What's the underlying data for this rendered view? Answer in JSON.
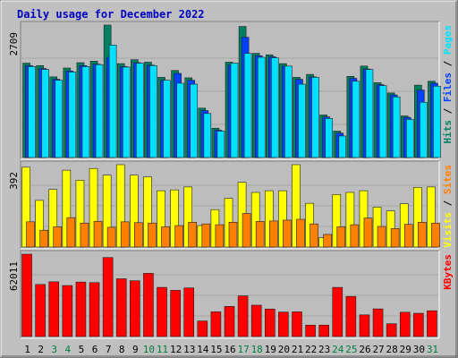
{
  "colors": {
    "background": "#C0C0C0",
    "panel": "#BDBDBD",
    "title": "#0000C0",
    "hits": "#008060",
    "files": "#0040FF",
    "pages": "#00E0FF",
    "visits": "#FFFF00",
    "sites": "#FF8000",
    "kbytes": "#FF0000",
    "weekend_label": "#008040",
    "weekday_label": "#000000"
  },
  "chart_data": {
    "type": "bar",
    "title": "Daily usage for December 2022",
    "categories": [
      "1",
      "2",
      "3",
      "4",
      "5",
      "6",
      "7",
      "8",
      "9",
      "10",
      "11",
      "12",
      "13",
      "14",
      "15",
      "16",
      "17",
      "18",
      "19",
      "20",
      "21",
      "22",
      "23",
      "24",
      "25",
      "26",
      "27",
      "28",
      "29",
      "30",
      "31"
    ],
    "weekend_days": [
      3,
      4,
      10,
      11,
      17,
      18,
      24,
      25,
      31
    ],
    "panels": [
      {
        "name": "top",
        "max_label": "2709",
        "right_labels": [
          {
            "text": "Hits",
            "color": "#008060"
          },
          {
            "text": " / ",
            "color": "#000000"
          },
          {
            "text": "Files",
            "color": "#0040FF"
          },
          {
            "text": " / ",
            "color": "#000000"
          },
          {
            "text": "Pages",
            "color": "#00E0FF"
          }
        ],
        "series": [
          {
            "name": "Hits",
            "color": "#008060",
            "values": [
              1930,
              1880,
              1650,
              1830,
              1940,
              1970,
              2709,
              1920,
              2000,
              1950,
              1640,
              1780,
              1630,
              1010,
              600,
              1950,
              2680,
              2130,
              2100,
              1920,
              1640,
              1700,
              870,
              540,
              1660,
              1870,
              1530,
              1320,
              850,
              1480,
              1560
            ]
          },
          {
            "name": "Files",
            "color": "#0040FF",
            "values": [
              1880,
              1820,
              1600,
              1770,
              1880,
              1910,
              2050,
              1860,
              1940,
              1890,
              1580,
              1720,
              1580,
              960,
              560,
              1890,
              2460,
              2080,
              2060,
              1870,
              1600,
              1650,
              830,
              500,
              1620,
              1810,
              1490,
              1280,
              820,
              1380,
              1520
            ]
          },
          {
            "name": "Pages",
            "color": "#00E0FF",
            "values": [
              1860,
              1800,
              1580,
              1750,
              1860,
              1900,
              2300,
              1850,
              1930,
              1880,
              1580,
              1520,
              1500,
              900,
              540,
              1930,
              2130,
              2050,
              2040,
              1870,
              1500,
              1640,
              800,
              440,
              1560,
              1800,
              1470,
              1240,
              780,
              1130,
              1460
            ]
          }
        ]
      },
      {
        "name": "middle",
        "max_label": "392",
        "right_labels": [
          {
            "text": "Visits",
            "color": "#FFFF00"
          },
          {
            "text": " / ",
            "color": "#000000"
          },
          {
            "text": "Sites",
            "color": "#FF8000"
          }
        ],
        "series": [
          {
            "name": "Visits",
            "color": "#FFFF00",
            "values": [
              380,
              222,
              274,
              366,
              318,
              374,
              342,
              392,
              342,
              334,
              268,
              272,
              286,
              102,
              178,
              232,
              308,
              260,
              268,
              268,
              392,
              208,
              44,
              250,
              260,
              268,
              190,
              172,
              206,
              284,
              286
            ]
          },
          {
            "name": "Sites",
            "color": "#FF8000",
            "values": [
              120,
              80,
              96,
              140,
              114,
              122,
              94,
              120,
              116,
              114,
              96,
              102,
              118,
              110,
              106,
              118,
              160,
              122,
              124,
              128,
              132,
              110,
              60,
              96,
              106,
              138,
              98,
              88,
              108,
              118,
              114
            ]
          }
        ]
      },
      {
        "name": "bottom",
        "max_label": "62011",
        "right_labels": [
          {
            "text": "KBytes",
            "color": "#FF0000"
          }
        ],
        "series": [
          {
            "name": "KBytes",
            "color": "#FF0000",
            "values": [
              62011,
              39200,
              41200,
              38400,
              41000,
              40600,
              59500,
              43500,
              42000,
              47600,
              37000,
              34800,
              36600,
              11700,
              18600,
              22700,
              30600,
              23600,
              20700,
              18400,
              18600,
              8600,
              8600,
              37000,
              30200,
              16300,
              20800,
              9600,
              18300,
              17500,
              19400
            ]
          }
        ]
      }
    ]
  }
}
